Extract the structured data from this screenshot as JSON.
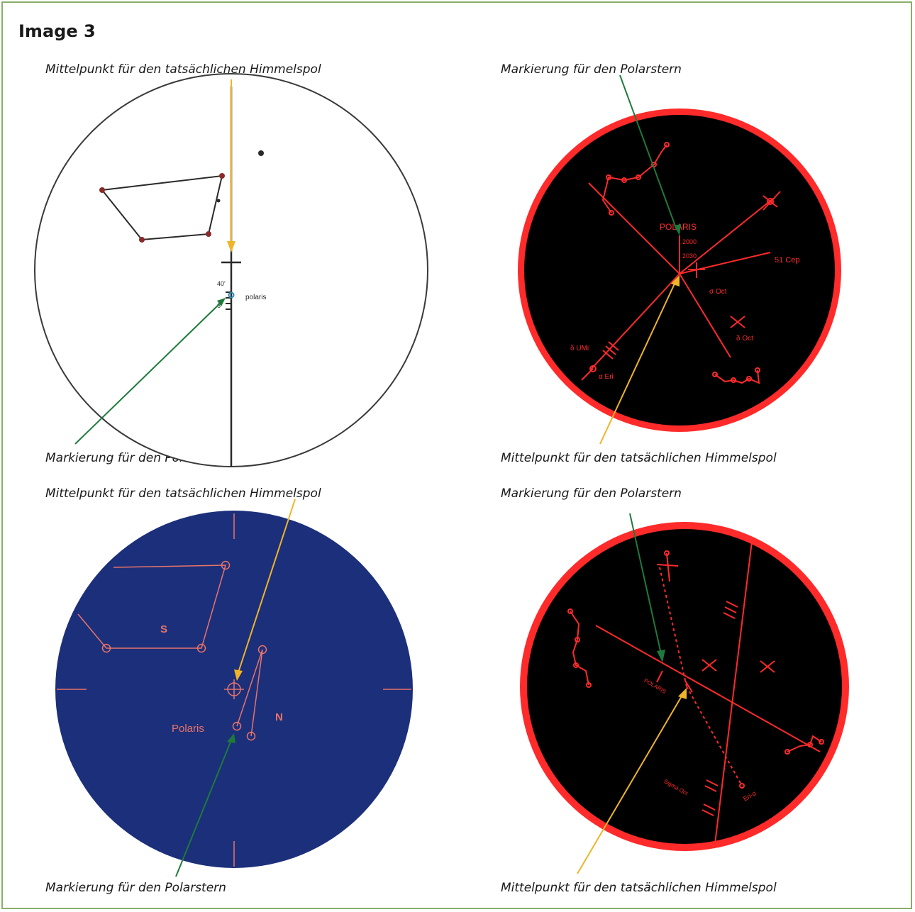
{
  "title": "Image 3",
  "panels": [
    {
      "caption_top": "Mittelpunkt für den tatsächlichen Himmelspol",
      "caption_bottom": "Markierung für den Polarstern",
      "labels": {
        "polaris": "polaris",
        "angle_a": "40'",
        "angle_b": "6"
      }
    },
    {
      "caption_top": "Markierung für den Polarstern",
      "caption_bottom": "Mittelpunkt für den tatsächlichen Himmelspol",
      "labels": {
        "polaris": "POLARIS",
        "year_a": "2000",
        "year_b": "2030",
        "cap": "51 Cep",
        "oct_a": "σ Oct",
        "oct_b": "δ Oct",
        "umi": "δ UMi",
        "eri": "α Eri"
      }
    },
    {
      "caption_top": "Mittelpunkt für den tatsächlichen Himmelspol",
      "caption_bottom": "Markierung für den Polarstern",
      "labels": {
        "s": "S",
        "n": "N",
        "polaris": "Polaris"
      }
    },
    {
      "caption_top": "Markierung für den Polarstern",
      "caption_bottom": "Mittelpunkt für den tatsächlichen Himmelspol",
      "labels": {
        "polaris": "POLARIS",
        "eri": "Eri-α",
        "south": "Sigma Oct"
      }
    }
  ],
  "colors": {
    "yellow_arrow": "#f0b429",
    "green_arrow": "#1e7a3a",
    "red": "#ff2a2a",
    "navy": "#1c2f7a",
    "salmon": "#e8746a"
  }
}
